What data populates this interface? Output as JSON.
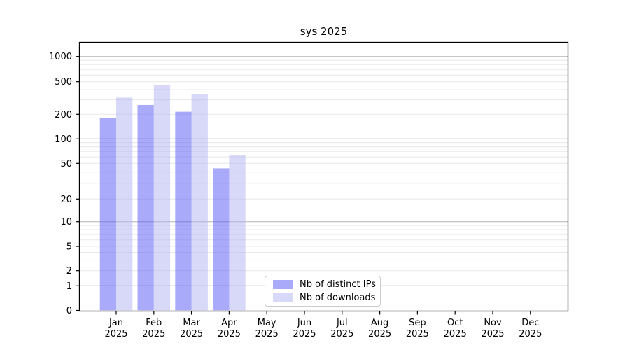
{
  "title": "sys 2025",
  "chart_data": {
    "type": "bar",
    "title": "sys 2025",
    "categories": [
      "Jan",
      "Feb",
      "Mar",
      "Apr",
      "May",
      "Jun",
      "Jul",
      "Aug",
      "Sep",
      "Oct",
      "Nov",
      "Dec"
    ],
    "category_year": "2025",
    "series": [
      {
        "name": "Nb of distinct IPs",
        "color": "rgba(85,85,245,0.5)",
        "solid_color": "#aaaaf8",
        "values": [
          180,
          260,
          215,
          44,
          0,
          0,
          0,
          0,
          0,
          0,
          0,
          0
        ]
      },
      {
        "name": "Nb of downloads",
        "color": "rgba(177,177,242,0.5)",
        "solid_color": "#d8d8f8",
        "values": [
          320,
          460,
          355,
          63,
          0,
          0,
          0,
          0,
          0,
          0,
          0,
          0
        ]
      }
    ],
    "y_ticks": [
      0,
      1,
      2,
      5,
      10,
      20,
      50,
      100,
      200,
      500,
      1000
    ],
    "y_scale": "symlog",
    "ylim": [
      0,
      1460
    ],
    "xlabel": "",
    "ylabel": "",
    "grid": "horizontal",
    "legend_position": "lower-center-inside",
    "colors": {
      "major_grid": "#b3b3b3",
      "minor_grid": "#e8e8e8",
      "axis": "#000000",
      "text": "#000000",
      "background": "#ffffff"
    }
  }
}
